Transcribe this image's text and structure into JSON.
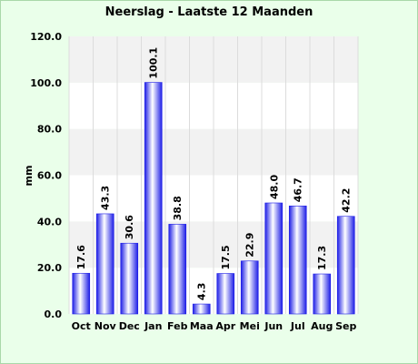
{
  "chart_data": {
    "type": "bar",
    "title": "Neerslag - Laatste 12 Maanden",
    "ylabel": "mm",
    "xlabel": "",
    "ylim": [
      0,
      120
    ],
    "yticks": [
      "0.0",
      "20.0",
      "40.0",
      "60.0",
      "80.0",
      "100.0",
      "120.0"
    ],
    "categories": [
      "Oct",
      "Nov",
      "Dec",
      "Jan",
      "Feb",
      "Maa",
      "Apr",
      "Mei",
      "Jun",
      "Jul",
      "Aug",
      "Sep"
    ],
    "values": [
      17.6,
      43.3,
      30.6,
      100.1,
      38.8,
      4.3,
      17.5,
      22.9,
      48.0,
      46.7,
      17.3,
      42.2
    ],
    "value_labels": [
      "17.6",
      "43.3",
      "30.6",
      "100.1",
      "38.8",
      "4.3",
      "17.5",
      "22.9",
      "48.0",
      "46.7",
      "17.3",
      "42.2"
    ],
    "grid": true,
    "colors": {
      "background": "#eaffea",
      "plot_band_light": "#ffffff",
      "plot_band_dark": "#f2f2f2",
      "bar_edge": "#1e1ee6",
      "bar_center": "#ffffff"
    }
  }
}
